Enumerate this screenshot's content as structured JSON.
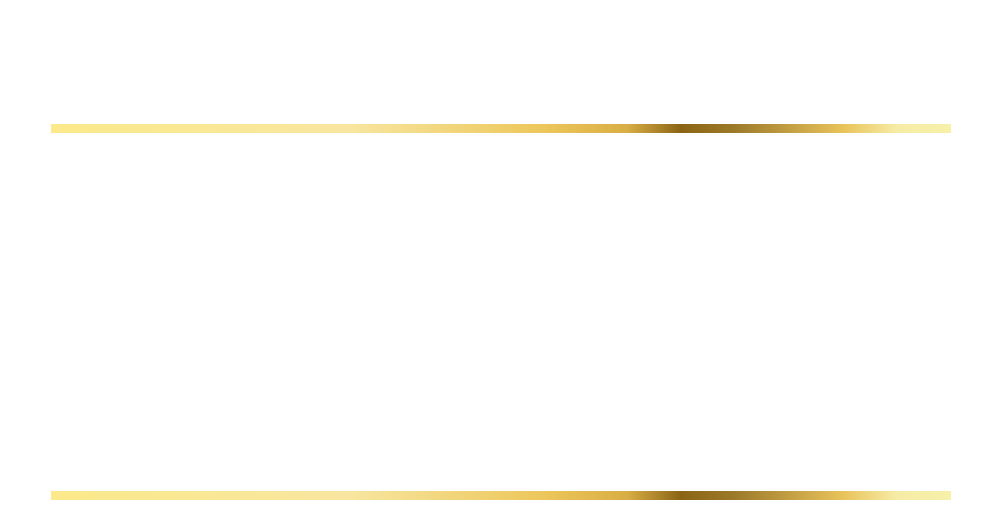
{
  "frame": {
    "background_color": "#ffffff",
    "rules": {
      "style": "metallic-gold-gradient",
      "gradient_stops": [
        {
          "offset": 0.0,
          "color": "#fbe98a"
        },
        {
          "offset": 0.33,
          "color": "#f8e6a0"
        },
        {
          "offset": 0.55,
          "color": "#ecc65a"
        },
        {
          "offset": 0.64,
          "color": "#d9ae45"
        },
        {
          "offset": 0.7,
          "color": "#8a6414"
        },
        {
          "offset": 0.76,
          "color": "#9c7a2a"
        },
        {
          "offset": 0.88,
          "color": "#e8c35a"
        },
        {
          "offset": 0.94,
          "color": "#f7eca6"
        },
        {
          "offset": 1.0,
          "color": "#f6f0a8"
        }
      ]
    }
  }
}
